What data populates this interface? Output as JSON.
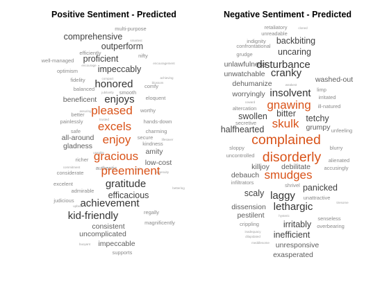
{
  "chart_data": [
    {
      "type": "wordcloud",
      "title": "Positive Sentiment - Predicted",
      "highlight_color": "#d95319",
      "base_color": "#404040",
      "words": [
        {
          "text": "multi-purpose",
          "weight": 1,
          "highlight": false
        },
        {
          "text": "comprehensive",
          "weight": 3,
          "highlight": false
        },
        {
          "text": "smartest",
          "weight": 0,
          "highlight": false
        },
        {
          "text": "outperform",
          "weight": 3,
          "highlight": false
        },
        {
          "text": "nifty",
          "weight": 1,
          "highlight": false
        },
        {
          "text": "efficiently",
          "weight": 1,
          "highlight": false
        },
        {
          "text": "proficient",
          "weight": 3,
          "highlight": false
        },
        {
          "text": "encouragement",
          "weight": 0,
          "highlight": false
        },
        {
          "text": "well-managed",
          "weight": 1,
          "highlight": false
        },
        {
          "text": "encourage",
          "weight": 0,
          "highlight": false
        },
        {
          "text": "impeccably",
          "weight": 3,
          "highlight": false
        },
        {
          "text": "optimism",
          "weight": 1,
          "highlight": false
        },
        {
          "text": "compact",
          "weight": 0,
          "highlight": false
        },
        {
          "text": "achieving",
          "weight": 0,
          "highlight": false
        },
        {
          "text": "fidelity",
          "weight": 1,
          "highlight": false
        },
        {
          "text": "honored",
          "weight": 4,
          "highlight": false
        },
        {
          "text": "blossom",
          "weight": 0,
          "highlight": false
        },
        {
          "text": "balanced",
          "weight": 1,
          "highlight": false
        },
        {
          "text": "smooth",
          "weight": 1,
          "highlight": false
        },
        {
          "text": "comfy",
          "weight": 1,
          "highlight": false
        },
        {
          "text": "jubilantly",
          "weight": 0,
          "highlight": false
        },
        {
          "text": "beneficent",
          "weight": 2,
          "highlight": false
        },
        {
          "text": "enjoys",
          "weight": 4,
          "highlight": false
        },
        {
          "text": "eloquent",
          "weight": 1,
          "highlight": false
        },
        {
          "text": "assuring",
          "weight": 0,
          "highlight": false
        },
        {
          "text": "pleased",
          "weight": 5,
          "highlight": true
        },
        {
          "text": "worthy",
          "weight": 1,
          "highlight": false
        },
        {
          "text": "better",
          "weight": 1,
          "highlight": false
        },
        {
          "text": "trusted",
          "weight": 0,
          "highlight": false
        },
        {
          "text": "painlessly",
          "weight": 1,
          "highlight": false
        },
        {
          "text": "hands-down",
          "weight": 1,
          "highlight": false
        },
        {
          "text": "excels",
          "weight": 5,
          "highlight": true
        },
        {
          "text": "safe",
          "weight": 1,
          "highlight": false
        },
        {
          "text": "charming",
          "weight": 1,
          "highlight": false
        },
        {
          "text": "all-around",
          "weight": 2,
          "highlight": false
        },
        {
          "text": "enjoy",
          "weight": 5,
          "highlight": true
        },
        {
          "text": "secure",
          "weight": 1,
          "highlight": false
        },
        {
          "text": "lifesaver",
          "weight": 0,
          "highlight": false
        },
        {
          "text": "gladness",
          "weight": 2,
          "highlight": false
        },
        {
          "text": "kindness",
          "weight": 1,
          "highlight": false
        },
        {
          "text": "useable",
          "weight": 0,
          "highlight": false
        },
        {
          "text": "amity",
          "weight": 2,
          "highlight": false
        },
        {
          "text": "gracious",
          "weight": 5,
          "highlight": true
        },
        {
          "text": "richer",
          "weight": 1,
          "highlight": false
        },
        {
          "text": "low-cost",
          "weight": 2,
          "highlight": false
        },
        {
          "text": "commitment",
          "weight": 0,
          "highlight": false
        },
        {
          "text": "authentic",
          "weight": 1,
          "highlight": false
        },
        {
          "text": "cool",
          "weight": 0,
          "highlight": false
        },
        {
          "text": "ingenuity",
          "weight": 0,
          "highlight": false
        },
        {
          "text": "considerate",
          "weight": 1,
          "highlight": false
        },
        {
          "text": "preeminent",
          "weight": 5,
          "highlight": true
        },
        {
          "text": "excelent",
          "weight": 1,
          "highlight": false
        },
        {
          "text": "gratitude",
          "weight": 4,
          "highlight": false
        },
        {
          "text": "admirable",
          "weight": 1,
          "highlight": false
        },
        {
          "text": "efficacious",
          "weight": 3,
          "highlight": false
        },
        {
          "text": "bettering",
          "weight": 0,
          "highlight": false
        },
        {
          "text": "judicious",
          "weight": 1,
          "highlight": false
        },
        {
          "text": "achievement",
          "weight": 4,
          "highlight": false
        },
        {
          "text": "upbeat",
          "weight": 0,
          "highlight": false
        },
        {
          "text": "regally",
          "weight": 1,
          "highlight": false
        },
        {
          "text": "kid-friendly",
          "weight": 4,
          "highlight": false
        },
        {
          "text": "magnificently",
          "weight": 1,
          "highlight": false
        },
        {
          "text": "consistent",
          "weight": 2,
          "highlight": false
        },
        {
          "text": "uncomplicated",
          "weight": 2,
          "highlight": false
        },
        {
          "text": "buoyant",
          "weight": 0,
          "highlight": false
        },
        {
          "text": "impeccable",
          "weight": 2,
          "highlight": false
        },
        {
          "text": "supports",
          "weight": 1,
          "highlight": false
        }
      ]
    },
    {
      "type": "wordcloud",
      "title": "Negative Sentiment - Predicted",
      "highlight_color": "#d95319",
      "base_color": "#404040",
      "words": [
        {
          "text": "retaliatory",
          "weight": 1,
          "highlight": false
        },
        {
          "text": "cloned",
          "weight": 0,
          "highlight": false
        },
        {
          "text": "unreadable",
          "weight": 1,
          "highlight": false
        },
        {
          "text": "indignity",
          "weight": 1,
          "highlight": false
        },
        {
          "text": "backbiting",
          "weight": 3,
          "highlight": false
        },
        {
          "text": "confrontational",
          "weight": 1,
          "highlight": false
        },
        {
          "text": "uncaring",
          "weight": 3,
          "highlight": false
        },
        {
          "text": "grudge",
          "weight": 1,
          "highlight": false
        },
        {
          "text": "unlawfulness",
          "weight": 2,
          "highlight": false
        },
        {
          "text": "disturbance",
          "weight": 4,
          "highlight": false
        },
        {
          "text": "unwatchable",
          "weight": 2,
          "highlight": false
        },
        {
          "text": "cranky",
          "weight": 4,
          "highlight": false
        },
        {
          "text": "washed-out",
          "weight": 2,
          "highlight": false
        },
        {
          "text": "dehumanize",
          "weight": 2,
          "highlight": false
        },
        {
          "text": "weakest",
          "weight": 0,
          "highlight": false
        },
        {
          "text": "limp",
          "weight": 1,
          "highlight": false
        },
        {
          "text": "worryingly",
          "weight": 2,
          "highlight": false
        },
        {
          "text": "insolvent",
          "weight": 4,
          "highlight": false
        },
        {
          "text": "irritated",
          "weight": 1,
          "highlight": false
        },
        {
          "text": "coward",
          "weight": 0,
          "highlight": false
        },
        {
          "text": "gnawing",
          "weight": 5,
          "highlight": true
        },
        {
          "text": "altercation",
          "weight": 1,
          "highlight": false
        },
        {
          "text": "ill-natured",
          "weight": 1,
          "highlight": false
        },
        {
          "text": "bitter",
          "weight": 3,
          "highlight": false
        },
        {
          "text": "swollen",
          "weight": 3,
          "highlight": false
        },
        {
          "text": "tetchy",
          "weight": 3,
          "highlight": false
        },
        {
          "text": "secretive",
          "weight": 1,
          "highlight": false
        },
        {
          "text": "skulk",
          "weight": 5,
          "highlight": true
        },
        {
          "text": "grumpy",
          "weight": 2,
          "highlight": false
        },
        {
          "text": "halfhearted",
          "weight": 3,
          "highlight": false
        },
        {
          "text": "unfeeling",
          "weight": 1,
          "highlight": false
        },
        {
          "text": "complained",
          "weight": 6,
          "highlight": true
        },
        {
          "text": "sloppy",
          "weight": 1,
          "highlight": false
        },
        {
          "text": "blurry",
          "weight": 1,
          "highlight": false
        },
        {
          "text": "uncontrolled",
          "weight": 1,
          "highlight": false
        },
        {
          "text": "disorderly",
          "weight": 6,
          "highlight": true
        },
        {
          "text": "alienated",
          "weight": 1,
          "highlight": false
        },
        {
          "text": "killjoy",
          "weight": 2,
          "highlight": false
        },
        {
          "text": "debilitate",
          "weight": 2,
          "highlight": false
        },
        {
          "text": "accusingly",
          "weight": 1,
          "highlight": false
        },
        {
          "text": "debauch",
          "weight": 2,
          "highlight": false
        },
        {
          "text": "smudges",
          "weight": 5,
          "highlight": true
        },
        {
          "text": "infiltrators",
          "weight": 1,
          "highlight": false
        },
        {
          "text": "shrivel",
          "weight": 1,
          "highlight": false
        },
        {
          "text": "panicked",
          "weight": 3,
          "highlight": false
        },
        {
          "text": "scaly",
          "weight": 3,
          "highlight": false
        },
        {
          "text": "laggy",
          "weight": 4,
          "highlight": false
        },
        {
          "text": "unattractive",
          "weight": 1,
          "highlight": false
        },
        {
          "text": "tiresome",
          "weight": 0,
          "highlight": false
        },
        {
          "text": "dissension",
          "weight": 2,
          "highlight": false
        },
        {
          "text": "lethargic",
          "weight": 4,
          "highlight": false
        },
        {
          "text": "pestilent",
          "weight": 2,
          "highlight": false
        },
        {
          "text": "hysteric",
          "weight": 0,
          "highlight": false
        },
        {
          "text": "senseless",
          "weight": 1,
          "highlight": false
        },
        {
          "text": "crippling",
          "weight": 1,
          "highlight": false
        },
        {
          "text": "irritably",
          "weight": 3,
          "highlight": false
        },
        {
          "text": "overbearing",
          "weight": 1,
          "highlight": false
        },
        {
          "text": "inadequacy",
          "weight": 0,
          "highlight": false
        },
        {
          "text": "inefficient",
          "weight": 3,
          "highlight": false
        },
        {
          "text": "dilapidated",
          "weight": 0,
          "highlight": false
        },
        {
          "text": "meddlesome",
          "weight": 0,
          "highlight": false
        },
        {
          "text": "unresponsive",
          "weight": 2,
          "highlight": false
        },
        {
          "text": "exasperated",
          "weight": 2,
          "highlight": false
        }
      ]
    }
  ]
}
